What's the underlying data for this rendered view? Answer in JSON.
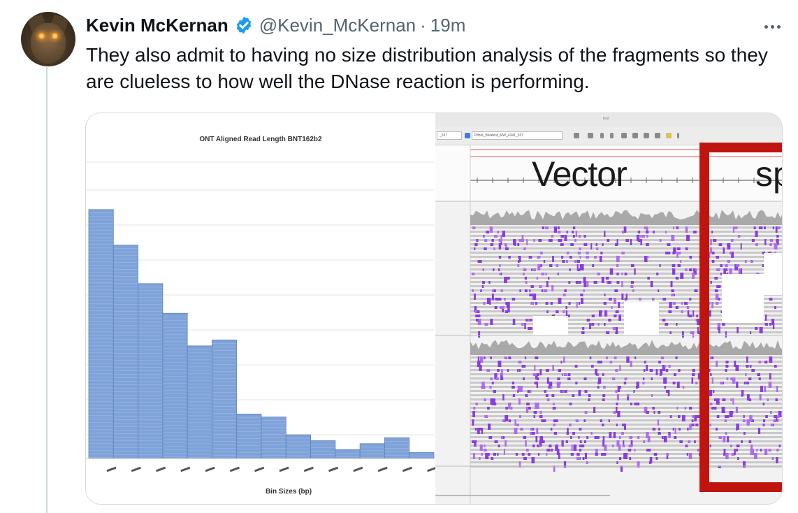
{
  "tweet": {
    "display_name": "Kevin McKernan",
    "handle": "@Kevin_McKernan",
    "separator": "·",
    "time": "19m",
    "text": "They also admit to having no size distribution analysis of the fragments so they are clueless to how well the DNase reaction is performing.",
    "verified_color": "#1d9bf0"
  },
  "media": {
    "histogram": {
      "title": "ONT Aligned Read Length BNT162b2",
      "xlabel": "Bin Sizes (bp)",
      "bar_color": "#7fa3d9"
    },
    "viewer": {
      "window_title": "IGV",
      "locus_left": "_537",
      "locus_right": "Pfizer_Bivalent_MW_4341_537",
      "region_labels": [
        "Vector",
        "sp"
      ],
      "highlight_color": "#c0150f"
    }
  },
  "chart_data": {
    "type": "bar",
    "title": "ONT Aligned Read Length BNT162b2",
    "xlabel": "Bin Sizes (bp)",
    "ylabel": "",
    "grid": true,
    "note": "bin tick labels are illegible in the screenshot",
    "values": [
      84,
      72,
      59,
      49,
      38,
      40,
      15,
      14,
      8,
      6,
      3,
      5,
      7,
      2
    ]
  }
}
